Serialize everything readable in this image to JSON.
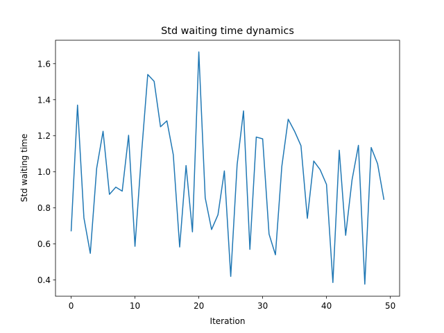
{
  "chart_data": {
    "type": "line",
    "title": "Std waiting time dynamics",
    "xlabel": "Iteration",
    "ylabel": "Std waiting time",
    "xlim": [
      -2.45,
      51.45
    ],
    "ylim": [
      0.31,
      1.73
    ],
    "grid": false,
    "line_color": "#1f77b4",
    "xticks": [
      0,
      10,
      20,
      30,
      40,
      50
    ],
    "yticks": [
      0.4,
      0.6,
      0.8,
      1.0,
      1.2,
      1.4,
      1.6
    ],
    "xtick_labels": [
      "0",
      "10",
      "20",
      "30",
      "40",
      "50"
    ],
    "ytick_labels": [
      "0.4",
      "0.6",
      "0.8",
      "1.0",
      "1.2",
      "1.4",
      "1.6"
    ],
    "series": [
      {
        "x": [
          0,
          1,
          2,
          3,
          4,
          5,
          6,
          7,
          8,
          9,
          10,
          11,
          12,
          13,
          14,
          15,
          16,
          17,
          18,
          19,
          20,
          21,
          22,
          23,
          24,
          25,
          26,
          27,
          28,
          29,
          30,
          31,
          32,
          33,
          34,
          35,
          36,
          37,
          38,
          39,
          40,
          41,
          42,
          43,
          44,
          45,
          46,
          47,
          48,
          49
        ],
        "values": [
          0.67,
          1.37,
          0.745,
          0.548,
          1.02,
          1.225,
          0.875,
          0.915,
          0.893,
          1.203,
          0.587,
          1.09,
          1.54,
          1.502,
          1.25,
          1.283,
          1.095,
          0.583,
          1.035,
          0.667,
          1.665,
          0.856,
          0.68,
          0.762,
          1.005,
          0.42,
          1.04,
          1.338,
          0.57,
          1.193,
          1.183,
          0.655,
          0.54,
          1.03,
          1.292,
          1.225,
          1.145,
          0.742,
          1.06,
          1.012,
          0.93,
          0.386,
          1.12,
          0.648,
          0.955,
          1.147,
          0.377,
          1.135,
          1.045,
          0.845
        ]
      }
    ]
  }
}
